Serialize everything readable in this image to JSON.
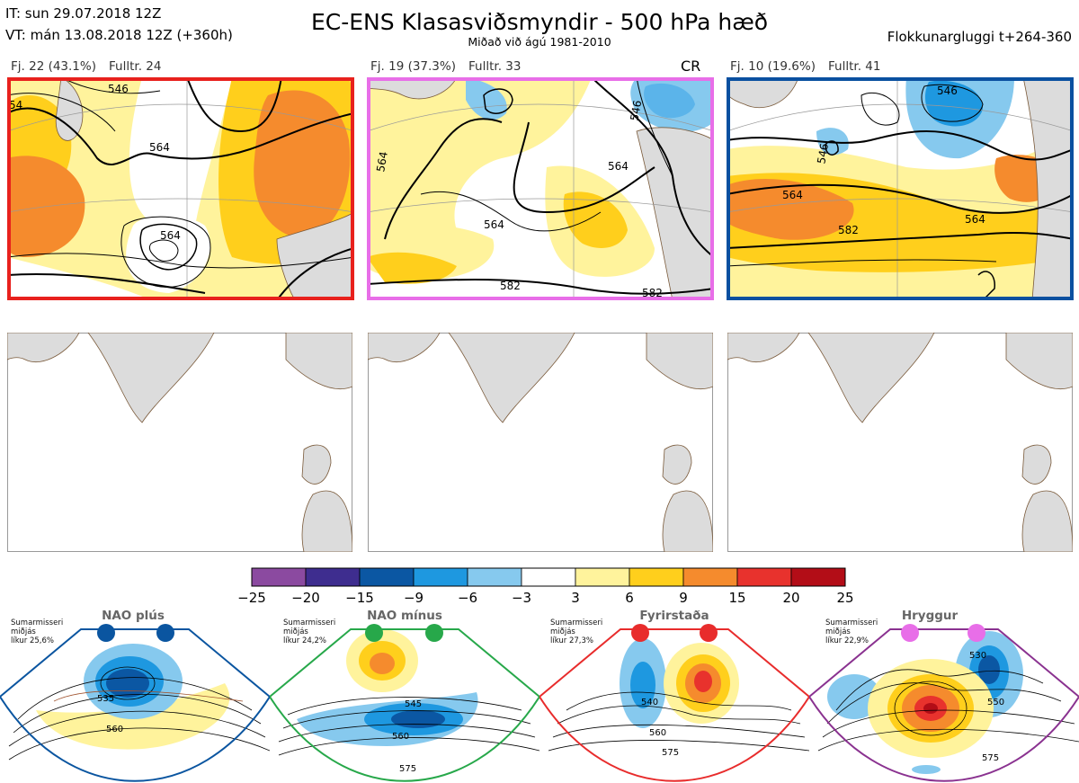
{
  "header": {
    "init_time": "IT: sun 29.07.2018 12Z",
    "valid_time": "VT: mán 13.08.2018 12Z  (+360h)",
    "title": "EC-ENS Klasasviðsmyndir - 500 hPa hæð",
    "subtitle": "Miðað við ágú 1981-2010",
    "window": "Flokkunargluggi t+264-360"
  },
  "clusters": [
    {
      "label": "Fj. 22 (43.1%)",
      "fulltr": "Fulltr. 24",
      "border_color": "#e8211d",
      "contour_labels": [
        "546",
        "564",
        "564",
        "54"
      ]
    },
    {
      "label": "Fj. 19 (37.3%)",
      "fulltr": "Fulltr. 33",
      "border_color": "#e86ee8",
      "tag": "CR",
      "contour_labels": [
        "564",
        "564",
        "564",
        "582",
        "582",
        "546"
      ]
    },
    {
      "label": "Fj. 10 (19.6%)",
      "fulltr": "Fulltr. 41",
      "border_color": "#0a50a0",
      "contour_labels": [
        "546",
        "564",
        "564",
        "582",
        "546"
      ]
    }
  ],
  "colorbar": {
    "ticks": [
      "−25",
      "−20",
      "−15",
      "−9",
      "−6",
      "−3",
      "3",
      "6",
      "9",
      "15",
      "20",
      "25"
    ],
    "colors": [
      "#8b4aa0",
      "#3e2d8f",
      "#0b57a3",
      "#1e98e0",
      "#86c9ee",
      "#ffffff",
      "#fff39c",
      "#ffcf1c",
      "#f58b2d",
      "#e8322d",
      "#b30d17"
    ]
  },
  "regimes": [
    {
      "name": "NAO plús",
      "season": "Sumarmisseri",
      "type": "miðjás",
      "likelihood": "líkur 25,6%",
      "border": "#0a55a0",
      "dot": "#0a55a0",
      "contours": [
        "535",
        "560"
      ]
    },
    {
      "name": "NAO mínus",
      "season": "Sumarmisseri",
      "type": "miðjás",
      "likelihood": "líkur 24,2%",
      "border": "#27a84a",
      "dot": "#27a84a",
      "contours": [
        "545",
        "560",
        "575"
      ]
    },
    {
      "name": "Fyrirstaða",
      "season": "Sumarmisseri",
      "type": "miðjás",
      "likelihood": "líkur 27,3%",
      "border": "#e82c2c",
      "dot": "#e82c2c",
      "contours": [
        "540",
        "560",
        "575"
      ]
    },
    {
      "name": "Hryggur",
      "season": "Sumarmisseri",
      "type": "miðjás",
      "likelihood": "líkur 22,9%",
      "border": "#8a3290",
      "dot": "#e86ee8",
      "contours": [
        "530",
        "550",
        "575"
      ]
    }
  ]
}
